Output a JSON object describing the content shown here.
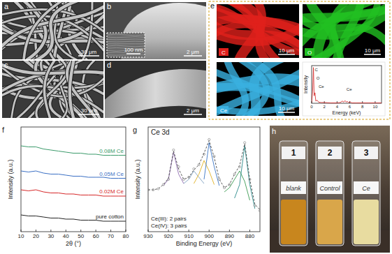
{
  "panel_labels": [
    "a",
    "b",
    "c",
    "d",
    "e",
    "f",
    "g",
    "h"
  ],
  "sem_images": [
    {
      "scale_bar": "30 μm"
    },
    {
      "scale_bar": "2 μm",
      "inset_scale_bar": "100 nm"
    },
    {
      "scale_bar": "30 μm"
    },
    {
      "scale_bar": "2 μm"
    }
  ],
  "eds_maps": [
    {
      "element": "C",
      "color": "#e0201c",
      "scale_bar": "10 μm"
    },
    {
      "element": "O",
      "color": "#22c022",
      "scale_bar": "10 μm"
    },
    {
      "element": "Ce",
      "color": "#3ab0e0",
      "scale_bar": "10 μm"
    }
  ],
  "vials": [
    {
      "number": "1",
      "label": "blank",
      "color": "#c8861e"
    },
    {
      "number": "2",
      "label": "Control",
      "color": "#d9a64a"
    },
    {
      "number": "3",
      "label": "Ce",
      "color": "#e8dca0"
    }
  ],
  "chart_data": [
    {
      "type": "line",
      "x_label": "2θ (°)",
      "y_label": "Intensity (a.u.)",
      "x": [
        10,
        15,
        20,
        25,
        30,
        35,
        40,
        45,
        50,
        55,
        60,
        65,
        70,
        75,
        80
      ],
      "xlim": [
        10,
        80
      ],
      "xticks": [
        10,
        20,
        30,
        40,
        50,
        60,
        70,
        80
      ],
      "ylim": [
        0,
        10
      ],
      "tick_labels": "x",
      "series": [
        {
          "name": "pure cotton",
          "color": "#222222",
          "values": [
            1.6,
            1.5,
            1.5,
            1.4,
            1.3,
            1.3,
            1.2,
            1.2,
            1.1,
            1.1,
            1.1,
            1.0,
            1.0,
            1.0,
            1.0
          ]
        },
        {
          "name": "0.02M Ce",
          "color": "#d62728",
          "values": [
            4.0,
            3.9,
            4.0,
            3.8,
            3.7,
            3.7,
            3.6,
            3.6,
            3.5,
            3.5,
            3.5,
            3.4,
            3.4,
            3.4,
            3.4
          ]
        },
        {
          "name": "0.05M Ce",
          "color": "#3a6fc4",
          "values": [
            5.8,
            5.7,
            5.8,
            5.6,
            5.5,
            5.5,
            5.4,
            5.3,
            5.3,
            5.2,
            5.2,
            5.2,
            5.1,
            5.1,
            5.1
          ]
        },
        {
          "name": "0.08M Ce",
          "color": "#3a9a6a",
          "values": [
            8.2,
            8.1,
            8.1,
            7.9,
            7.8,
            7.7,
            7.6,
            7.5,
            7.5,
            7.4,
            7.4,
            7.3,
            7.3,
            7.3,
            7.3
          ]
        }
      ]
    },
    {
      "type": "line",
      "title": "Ce 3d",
      "x_label": "Binding Energy (eV)",
      "y_label": "Intensity (a.u.)",
      "annotations": [
        "Ce(III): 2 pairs",
        "Ce(IV): 3 pairs"
      ],
      "x": [
        930,
        927.5,
        925,
        922.5,
        920,
        917.5,
        915,
        912.5,
        910,
        907.5,
        905,
        902.5,
        900,
        897.5,
        895,
        892.5,
        890,
        887.5,
        885,
        882.5,
        880,
        877.5,
        875
      ],
      "xlim": [
        930,
        875
      ],
      "xticks": [
        930,
        920,
        910,
        900,
        890,
        880
      ],
      "ylim": [
        0,
        100
      ],
      "tick_labels": "x",
      "series": [
        {
          "color": "#8e6bb0",
          "values": [
            null,
            null,
            null,
            44,
            50,
            76,
            55,
            46,
            null,
            null,
            null,
            null,
            null,
            null,
            null,
            null,
            null,
            null,
            null,
            null,
            null,
            null,
            null
          ]
        },
        {
          "color": "#7fa0c0",
          "values": [
            null,
            null,
            null,
            null,
            null,
            null,
            null,
            46,
            50,
            58,
            52,
            46,
            null,
            null,
            null,
            null,
            null,
            null,
            null,
            null,
            null,
            null,
            null
          ]
        },
        {
          "color": "#e0b020",
          "values": [
            null,
            null,
            null,
            null,
            null,
            null,
            null,
            null,
            null,
            46,
            55,
            68,
            58,
            45,
            null,
            null,
            null,
            null,
            null,
            null,
            null,
            null,
            null
          ]
        },
        {
          "color": "#3b75c4",
          "values": [
            null,
            null,
            null,
            null,
            null,
            null,
            null,
            null,
            null,
            null,
            null,
            50,
            85,
            62,
            44,
            null,
            null,
            null,
            null,
            null,
            null,
            null,
            null
          ]
        },
        {
          "color": "#3a9a50",
          "values": [
            null,
            null,
            null,
            null,
            null,
            null,
            null,
            null,
            null,
            null,
            null,
            null,
            null,
            null,
            null,
            38,
            42,
            50,
            58,
            48,
            30,
            null,
            null
          ]
        },
        {
          "color": "#2a8a8a",
          "values": [
            null,
            null,
            null,
            null,
            null,
            null,
            null,
            null,
            null,
            null,
            null,
            null,
            null,
            null,
            null,
            null,
            null,
            32,
            45,
            82,
            45,
            22,
            null
          ]
        },
        {
          "color": "#444444",
          "line_style": "dashed",
          "values": [
            40,
            40,
            41,
            45,
            51,
            77,
            60,
            50,
            52,
            59,
            64,
            75,
            87,
            71,
            50,
            42,
            45,
            55,
            63,
            84,
            50,
            26,
            21
          ]
        },
        {
          "type": "scatter",
          "marker": "circle",
          "color": "#8a8a8a",
          "values": [
            40,
            40,
            41,
            45,
            50,
            78,
            62,
            50,
            52,
            60,
            64,
            74,
            88,
            72,
            50,
            42,
            45,
            55,
            62,
            85,
            50,
            25,
            20
          ]
        }
      ]
    },
    {
      "type": "line",
      "x_label": "Energy (keV)",
      "y_label": "Intensity",
      "annotations": [
        {
          "text": "C",
          "x": 0.28
        },
        {
          "text": "O",
          "x": 0.52
        },
        {
          "text": "Ce",
          "x": 0.88
        },
        {
          "text": "Ce",
          "x": 5.26
        }
      ],
      "x": [
        0,
        0.15,
        0.28,
        0.4,
        0.52,
        0.65,
        0.88,
        1.1,
        1.5,
        2,
        3,
        4,
        4.5,
        4.84,
        5.05,
        5.26,
        5.45,
        5.61,
        5.8,
        6.05,
        6.3,
        7,
        8,
        9,
        10,
        11
      ],
      "xlim": [
        0,
        11
      ],
      "xticks": [
        0,
        2,
        4,
        6,
        8,
        10
      ],
      "ylim": [
        0,
        100
      ],
      "tick_labels": "x",
      "series": [
        {
          "color": "#d42020",
          "values": [
            2,
            30,
            95,
            20,
            28,
            6,
            8,
            3,
            2,
            2,
            1,
            1,
            2,
            6,
            3,
            7,
            3,
            5,
            2,
            4,
            1,
            1,
            1,
            1,
            1,
            1
          ]
        }
      ]
    }
  ]
}
